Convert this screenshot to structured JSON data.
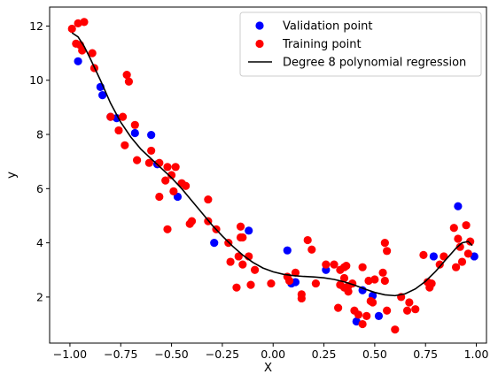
{
  "chart_data": {
    "type": "scatter",
    "title": "",
    "xlabel": "X",
    "ylabel": "y",
    "xlim": [
      -1.1,
      1.05
    ],
    "ylim": [
      0.3,
      12.7
    ],
    "xticks": [
      -1.0,
      -0.75,
      -0.5,
      -0.25,
      0.0,
      0.25,
      0.5,
      0.75,
      1.0
    ],
    "xtick_labels": [
      "−1.00",
      "−0.75",
      "−0.50",
      "−0.25",
      "0.00",
      "0.25",
      "0.50",
      "0.75",
      "1.00"
    ],
    "yticks": [
      2,
      4,
      6,
      8,
      10,
      12
    ],
    "ytick_labels": [
      "2",
      "4",
      "6",
      "8",
      "10",
      "12"
    ],
    "grid": false,
    "legend_position": "top-right",
    "series": [
      {
        "name": "Validation point",
        "kind": "scatter",
        "color": "#0000ff",
        "points": [
          [
            -0.96,
            10.7
          ],
          [
            -0.85,
            9.75
          ],
          [
            -0.84,
            9.45
          ],
          [
            -0.8,
            8.65
          ],
          [
            -0.77,
            8.6
          ],
          [
            -0.68,
            8.05
          ],
          [
            -0.6,
            7.98
          ],
          [
            -0.57,
            6.9
          ],
          [
            -0.47,
            5.7
          ],
          [
            -0.29,
            4.0
          ],
          [
            -0.12,
            4.45
          ],
          [
            0.07,
            3.72
          ],
          [
            0.09,
            2.5
          ],
          [
            0.11,
            2.55
          ],
          [
            0.26,
            3.0
          ],
          [
            0.41,
            1.1
          ],
          [
            0.44,
            2.25
          ],
          [
            0.49,
            2.05
          ],
          [
            0.52,
            1.3
          ],
          [
            0.79,
            3.5
          ],
          [
            0.91,
            5.35
          ],
          [
            0.99,
            3.5
          ]
        ]
      },
      {
        "name": "Training point",
        "kind": "scatter",
        "color": "#ff0000",
        "points": [
          [
            -0.99,
            11.9
          ],
          [
            -0.96,
            12.1
          ],
          [
            -0.93,
            12.15
          ],
          [
            -0.97,
            11.35
          ],
          [
            -0.95,
            11.3
          ],
          [
            -0.94,
            11.1
          ],
          [
            -0.89,
            11.0
          ],
          [
            -0.88,
            10.45
          ],
          [
            -0.72,
            10.2
          ],
          [
            -0.71,
            9.95
          ],
          [
            -0.8,
            8.65
          ],
          [
            -0.74,
            8.65
          ],
          [
            -0.68,
            8.35
          ],
          [
            -0.76,
            8.15
          ],
          [
            -0.73,
            7.6
          ],
          [
            -0.6,
            7.4
          ],
          [
            -0.56,
            6.95
          ],
          [
            -0.61,
            6.95
          ],
          [
            -0.67,
            7.05
          ],
          [
            -0.52,
            6.8
          ],
          [
            -0.48,
            6.8
          ],
          [
            -0.5,
            6.5
          ],
          [
            -0.56,
            5.7
          ],
          [
            -0.53,
            6.3
          ],
          [
            -0.45,
            6.2
          ],
          [
            -0.43,
            6.1
          ],
          [
            -0.49,
            5.9
          ],
          [
            -0.52,
            4.5
          ],
          [
            -0.41,
            4.7
          ],
          [
            -0.4,
            4.8
          ],
          [
            -0.32,
            5.6
          ],
          [
            -0.32,
            4.8
          ],
          [
            -0.28,
            4.5
          ],
          [
            -0.22,
            4.0
          ],
          [
            -0.21,
            3.3
          ],
          [
            -0.17,
            3.5
          ],
          [
            -0.16,
            4.2
          ],
          [
            -0.16,
            4.6
          ],
          [
            -0.15,
            4.2
          ],
          [
            -0.15,
            3.2
          ],
          [
            -0.18,
            2.35
          ],
          [
            -0.12,
            3.5
          ],
          [
            -0.11,
            2.45
          ],
          [
            -0.09,
            3.0
          ],
          [
            -0.01,
            2.5
          ],
          [
            0.07,
            2.75
          ],
          [
            0.08,
            2.6
          ],
          [
            0.11,
            2.9
          ],
          [
            0.14,
            2.1
          ],
          [
            0.14,
            1.95
          ],
          [
            0.17,
            4.1
          ],
          [
            0.19,
            3.75
          ],
          [
            0.21,
            2.5
          ],
          [
            0.26,
            3.2
          ],
          [
            0.3,
            3.2
          ],
          [
            0.32,
            1.6
          ],
          [
            0.33,
            3.0
          ],
          [
            0.33,
            2.45
          ],
          [
            0.35,
            3.1
          ],
          [
            0.35,
            2.7
          ],
          [
            0.35,
            2.35
          ],
          [
            0.36,
            3.15
          ],
          [
            0.37,
            2.4
          ],
          [
            0.37,
            2.2
          ],
          [
            0.39,
            2.5
          ],
          [
            0.4,
            1.5
          ],
          [
            0.42,
            1.35
          ],
          [
            0.44,
            1.0
          ],
          [
            0.44,
            3.1
          ],
          [
            0.46,
            1.3
          ],
          [
            0.47,
            2.6
          ],
          [
            0.48,
            1.85
          ],
          [
            0.49,
            1.8
          ],
          [
            0.5,
            2.65
          ],
          [
            0.54,
            2.9
          ],
          [
            0.55,
            2.6
          ],
          [
            0.55,
            4.0
          ],
          [
            0.56,
            3.7
          ],
          [
            0.56,
            1.5
          ],
          [
            0.6,
            0.8
          ],
          [
            0.63,
            2.0
          ],
          [
            0.66,
            1.5
          ],
          [
            0.67,
            1.8
          ],
          [
            0.7,
            1.55
          ],
          [
            0.74,
            3.55
          ],
          [
            0.76,
            2.55
          ],
          [
            0.77,
            2.35
          ],
          [
            0.78,
            2.5
          ],
          [
            0.82,
            3.2
          ],
          [
            0.84,
            3.5
          ],
          [
            0.89,
            4.55
          ],
          [
            0.9,
            3.1
          ],
          [
            0.91,
            4.15
          ],
          [
            0.92,
            3.85
          ],
          [
            0.93,
            3.3
          ],
          [
            0.95,
            4.65
          ],
          [
            0.96,
            3.6
          ],
          [
            0.97,
            4.05
          ]
        ]
      },
      {
        "name": "Degree 8 polynomial regression",
        "kind": "line",
        "color": "#000000",
        "points": [
          [
            -0.99,
            11.75
          ],
          [
            -0.96,
            11.6
          ],
          [
            -0.93,
            11.25
          ],
          [
            -0.9,
            10.8
          ],
          [
            -0.85,
            10.0
          ],
          [
            -0.8,
            9.15
          ],
          [
            -0.75,
            8.45
          ],
          [
            -0.7,
            7.9
          ],
          [
            -0.65,
            7.45
          ],
          [
            -0.6,
            7.1
          ],
          [
            -0.55,
            6.75
          ],
          [
            -0.5,
            6.4
          ],
          [
            -0.45,
            6.0
          ],
          [
            -0.4,
            5.55
          ],
          [
            -0.35,
            5.1
          ],
          [
            -0.3,
            4.65
          ],
          [
            -0.25,
            4.25
          ],
          [
            -0.2,
            3.88
          ],
          [
            -0.15,
            3.55
          ],
          [
            -0.1,
            3.28
          ],
          [
            -0.05,
            3.07
          ],
          [
            0.0,
            2.93
          ],
          [
            0.05,
            2.84
          ],
          [
            0.1,
            2.79
          ],
          [
            0.15,
            2.76
          ],
          [
            0.2,
            2.74
          ],
          [
            0.25,
            2.71
          ],
          [
            0.3,
            2.65
          ],
          [
            0.35,
            2.56
          ],
          [
            0.4,
            2.44
          ],
          [
            0.45,
            2.3
          ],
          [
            0.5,
            2.17
          ],
          [
            0.55,
            2.08
          ],
          [
            0.6,
            2.05
          ],
          [
            0.65,
            2.12
          ],
          [
            0.7,
            2.3
          ],
          [
            0.75,
            2.58
          ],
          [
            0.8,
            2.95
          ],
          [
            0.85,
            3.38
          ],
          [
            0.9,
            3.8
          ],
          [
            0.93,
            4.0
          ],
          [
            0.96,
            4.05
          ],
          [
            0.98,
            3.9
          ]
        ]
      }
    ]
  }
}
